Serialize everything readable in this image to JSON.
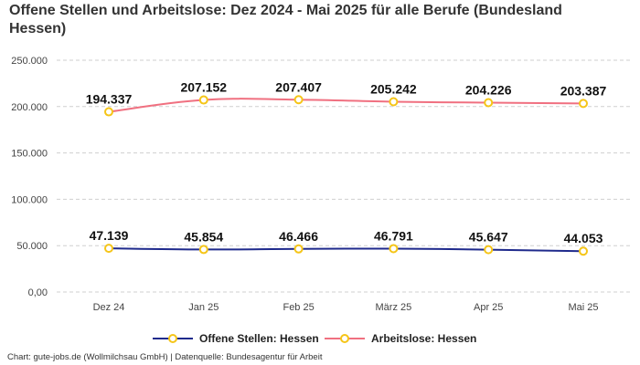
{
  "chart_data": {
    "type": "line",
    "title": "Offene Stellen und Arbeitslose: Dez 2024 - Mai 2025 für alle Berufe (Bundesland Hessen)",
    "categories": [
      "Dez 24",
      "Jan 25",
      "Feb 25",
      "März 25",
      "Apr 25",
      "Mai 25"
    ],
    "y_ticks": [
      "0,00",
      "50.000",
      "100.000",
      "150.000",
      "200.000",
      "250.000"
    ],
    "ylim": [
      0,
      250000
    ],
    "grid": true,
    "legend_position": "bottom",
    "series": [
      {
        "name": "Offene Stellen: Hessen",
        "values": [
          47139,
          45854,
          46466,
          46791,
          45647,
          44053
        ],
        "labels": [
          "47.139",
          "45.854",
          "46.466",
          "46.791",
          "45.647",
          "44.053"
        ],
        "color": "#1f2a8c",
        "marker_color": "#f5c518"
      },
      {
        "name": "Arbeitslose: Hessen",
        "values": [
          194337,
          207152,
          207407,
          205242,
          204226,
          203387
        ],
        "labels": [
          "194.337",
          "207.152",
          "207.407",
          "205.242",
          "204.226",
          "203.387"
        ],
        "color": "#f07080",
        "marker_color": "#f5c518"
      }
    ]
  },
  "footer": "Chart: gute-jobs.de (Wollmilchsau GmbH) | Datenquelle: Bundesagentur für Arbeit"
}
